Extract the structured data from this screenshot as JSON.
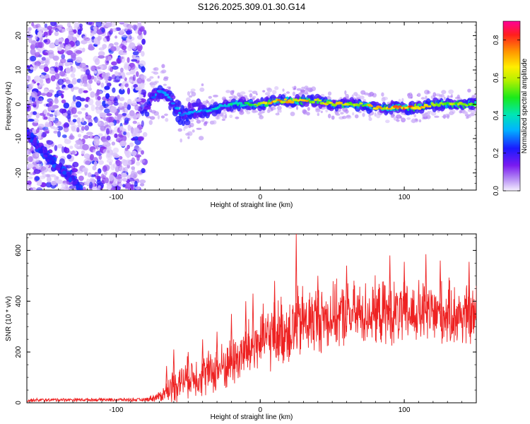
{
  "title": "S126.2025.309.01.30.G14",
  "chart_data": [
    {
      "type": "heatmap",
      "xlabel": "Height of straight line (km)",
      "ylabel": "Frequency (Hz)",
      "xlim": [
        -162,
        150
      ],
      "ylim": [
        -25,
        24
      ],
      "xticks": [
        -100,
        0,
        100
      ],
      "yticks": [
        20,
        10,
        0,
        -10,
        -20
      ],
      "colorbar": {
        "label": "Normalized spectral amplitude",
        "range": [
          0.0,
          0.9
        ],
        "ticks": [
          0.0,
          0.2,
          0.4,
          0.6,
          0.8
        ]
      },
      "ridge": {
        "description_points_km_hz": [
          [
            -80,
            -2
          ],
          [
            -75,
            2
          ],
          [
            -70,
            4
          ],
          [
            -65,
            3
          ],
          [
            -60,
            0
          ],
          [
            -55,
            -3
          ],
          [
            -50,
            -3
          ],
          [
            -45,
            -2
          ],
          [
            -40,
            -2
          ],
          [
            -35,
            -2
          ],
          [
            -30,
            -1
          ],
          [
            -20,
            0
          ],
          [
            -10,
            0
          ],
          [
            0,
            0
          ],
          [
            10,
            1
          ],
          [
            20,
            1
          ],
          [
            30,
            1
          ],
          [
            40,
            1
          ],
          [
            50,
            0
          ],
          [
            60,
            0
          ],
          [
            70,
            0
          ],
          [
            80,
            -1
          ],
          [
            90,
            -1
          ],
          [
            100,
            -1
          ],
          [
            110,
            -1
          ],
          [
            120,
            0
          ],
          [
            130,
            0
          ],
          [
            140,
            0
          ],
          [
            150,
            0
          ]
        ],
        "amplitude_points": [
          [
            -80,
            0.2
          ],
          [
            -70,
            0.3
          ],
          [
            -60,
            0.3
          ],
          [
            -50,
            0.3
          ],
          [
            -40,
            0.3
          ],
          [
            -30,
            0.35
          ],
          [
            -20,
            0.4
          ],
          [
            -10,
            0.45
          ],
          [
            0,
            0.55
          ],
          [
            10,
            0.7
          ],
          [
            20,
            0.65
          ],
          [
            30,
            0.65
          ],
          [
            40,
            0.6
          ],
          [
            50,
            0.65
          ],
          [
            60,
            0.6
          ],
          [
            70,
            0.6
          ],
          [
            80,
            0.65
          ],
          [
            90,
            0.65
          ],
          [
            100,
            0.75
          ],
          [
            110,
            0.7
          ],
          [
            120,
            0.6
          ],
          [
            130,
            0.55
          ],
          [
            140,
            0.6
          ],
          [
            150,
            0.55
          ]
        ]
      },
      "noise_region_km": [
        -162,
        -80
      ],
      "noise_track_points_km_hz": [
        [
          -162,
          -8
        ],
        [
          -155,
          -12
        ],
        [
          -145,
          -16
        ],
        [
          -135,
          -20
        ],
        [
          -128,
          -23
        ],
        [
          -124,
          -25
        ]
      ]
    },
    {
      "type": "line",
      "xlabel": "Height of straight line (km)",
      "ylabel": "SNR (10 * v/v)",
      "xlim": [
        -162,
        150
      ],
      "ylim": [
        0,
        665
      ],
      "xticks": [
        -100,
        0,
        100
      ],
      "yticks": [
        0,
        200,
        400,
        600
      ],
      "series": [
        {
          "name": "SNR",
          "color": "#ee2222",
          "envelope_x": [
            -162,
            -140,
            -120,
            -100,
            -80,
            -70,
            -65,
            -60,
            -50,
            -40,
            -30,
            -20,
            -10,
            0,
            10,
            20,
            25,
            30,
            40,
            50,
            60,
            70,
            80,
            90,
            100,
            110,
            120,
            130,
            140,
            150
          ],
          "envelope_mean": [
            10,
            12,
            12,
            12,
            12,
            25,
            45,
            70,
            100,
            110,
            130,
            160,
            200,
            240,
            270,
            290,
            300,
            320,
            330,
            340,
            345,
            350,
            355,
            350,
            350,
            355,
            350,
            350,
            345,
            340
          ],
          "envelope_spread": [
            8,
            8,
            8,
            8,
            8,
            25,
            50,
            80,
            90,
            100,
            110,
            120,
            140,
            150,
            160,
            170,
            180,
            170,
            160,
            150,
            150,
            150,
            150,
            150,
            150,
            150,
            150,
            150,
            150,
            150
          ],
          "peaks": [
            [
              -65,
              145
            ],
            [
              -60,
              210
            ],
            [
              -50,
              200
            ],
            [
              -40,
              250
            ],
            [
              -30,
              280
            ],
            [
              -20,
              350
            ],
            [
              -10,
              400
            ],
            [
              -5,
              430
            ],
            [
              10,
              480
            ],
            [
              25,
              665
            ],
            [
              40,
              500
            ],
            [
              60,
              540
            ],
            [
              90,
              580
            ],
            [
              100,
              555
            ],
            [
              115,
              585
            ],
            [
              125,
              560
            ],
            [
              145,
              555
            ]
          ]
        }
      ]
    }
  ]
}
